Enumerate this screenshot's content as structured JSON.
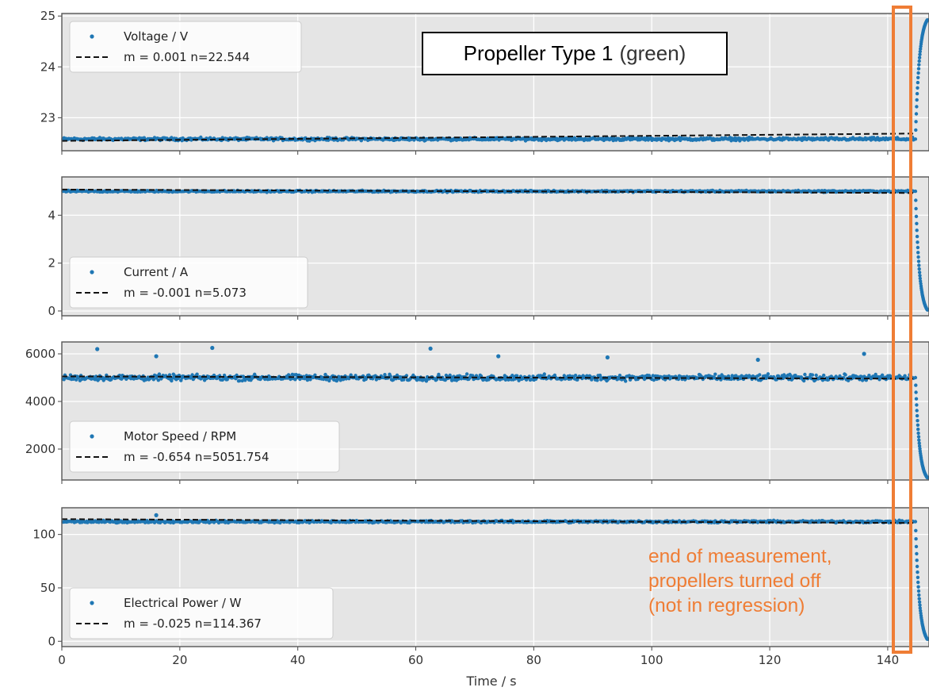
{
  "title": {
    "main": "Propeller Type 1",
    "suffix": "(green)"
  },
  "annotation": {
    "lines": [
      "end of measurement,",
      "propellers turned off",
      "(not in regression)"
    ],
    "color": "#ef7d35"
  },
  "chart_data": {
    "type": "scatter",
    "xlabel": "Time / s",
    "xlim": [
      0,
      147
    ],
    "xticks": [
      0,
      20,
      40,
      60,
      80,
      100,
      120,
      140
    ],
    "grid": true,
    "legend_placement": "left",
    "measurement_end_s": 144.5,
    "colors": {
      "points": "#1f77b4",
      "fit": "#111111",
      "axes_bg": "#e5e5e5",
      "highlight": "#ef7d35"
    },
    "panels": [
      {
        "name": "Voltage / V",
        "fit_label": "m = 0.001 n=22.544",
        "m": 0.001,
        "n": 22.544,
        "ylim": [
          22.35,
          25.05
        ],
        "yticks": [
          23,
          24,
          25
        ],
        "plateau": 22.58,
        "noise": 0.04,
        "end_value": 24.92,
        "outliers": [],
        "legend_pos": "top-left"
      },
      {
        "name": "Current / A",
        "fit_label": "m = -0.001 n=5.073",
        "m": -0.001,
        "n": 5.073,
        "ylim": [
          -0.2,
          5.6
        ],
        "yticks": [
          0,
          2,
          4
        ],
        "plateau": 5.0,
        "noise": 0.05,
        "end_value": 0.05,
        "outliers": [],
        "legend_pos": "bottom-left"
      },
      {
        "name": "Motor Speed / RPM",
        "fit_label": "m = -0.654 n=5051.754",
        "m": -0.654,
        "n": 5051.754,
        "ylim": [
          700,
          6500
        ],
        "yticks": [
          2000,
          4000,
          6000
        ],
        "plateau": 5000,
        "noise": 180,
        "end_value": 800,
        "outliers": [
          [
            6,
            6200
          ],
          [
            16,
            5900
          ],
          [
            25.5,
            6250
          ],
          [
            62.5,
            6220
          ],
          [
            74,
            5900
          ],
          [
            92.5,
            5850
          ],
          [
            118,
            5750
          ],
          [
            136,
            6000
          ]
        ],
        "legend_pos": "bottom-left"
      },
      {
        "name": "Electrical Power / W",
        "fit_label": "m = -0.025 n=114.367",
        "m": -0.025,
        "n": 114.367,
        "ylim": [
          -5,
          125
        ],
        "yticks": [
          0,
          50,
          100
        ],
        "plateau": 112,
        "noise": 1.5,
        "end_value": 2,
        "outliers": [
          [
            16,
            118
          ]
        ],
        "legend_pos": "bottom-left"
      }
    ]
  }
}
